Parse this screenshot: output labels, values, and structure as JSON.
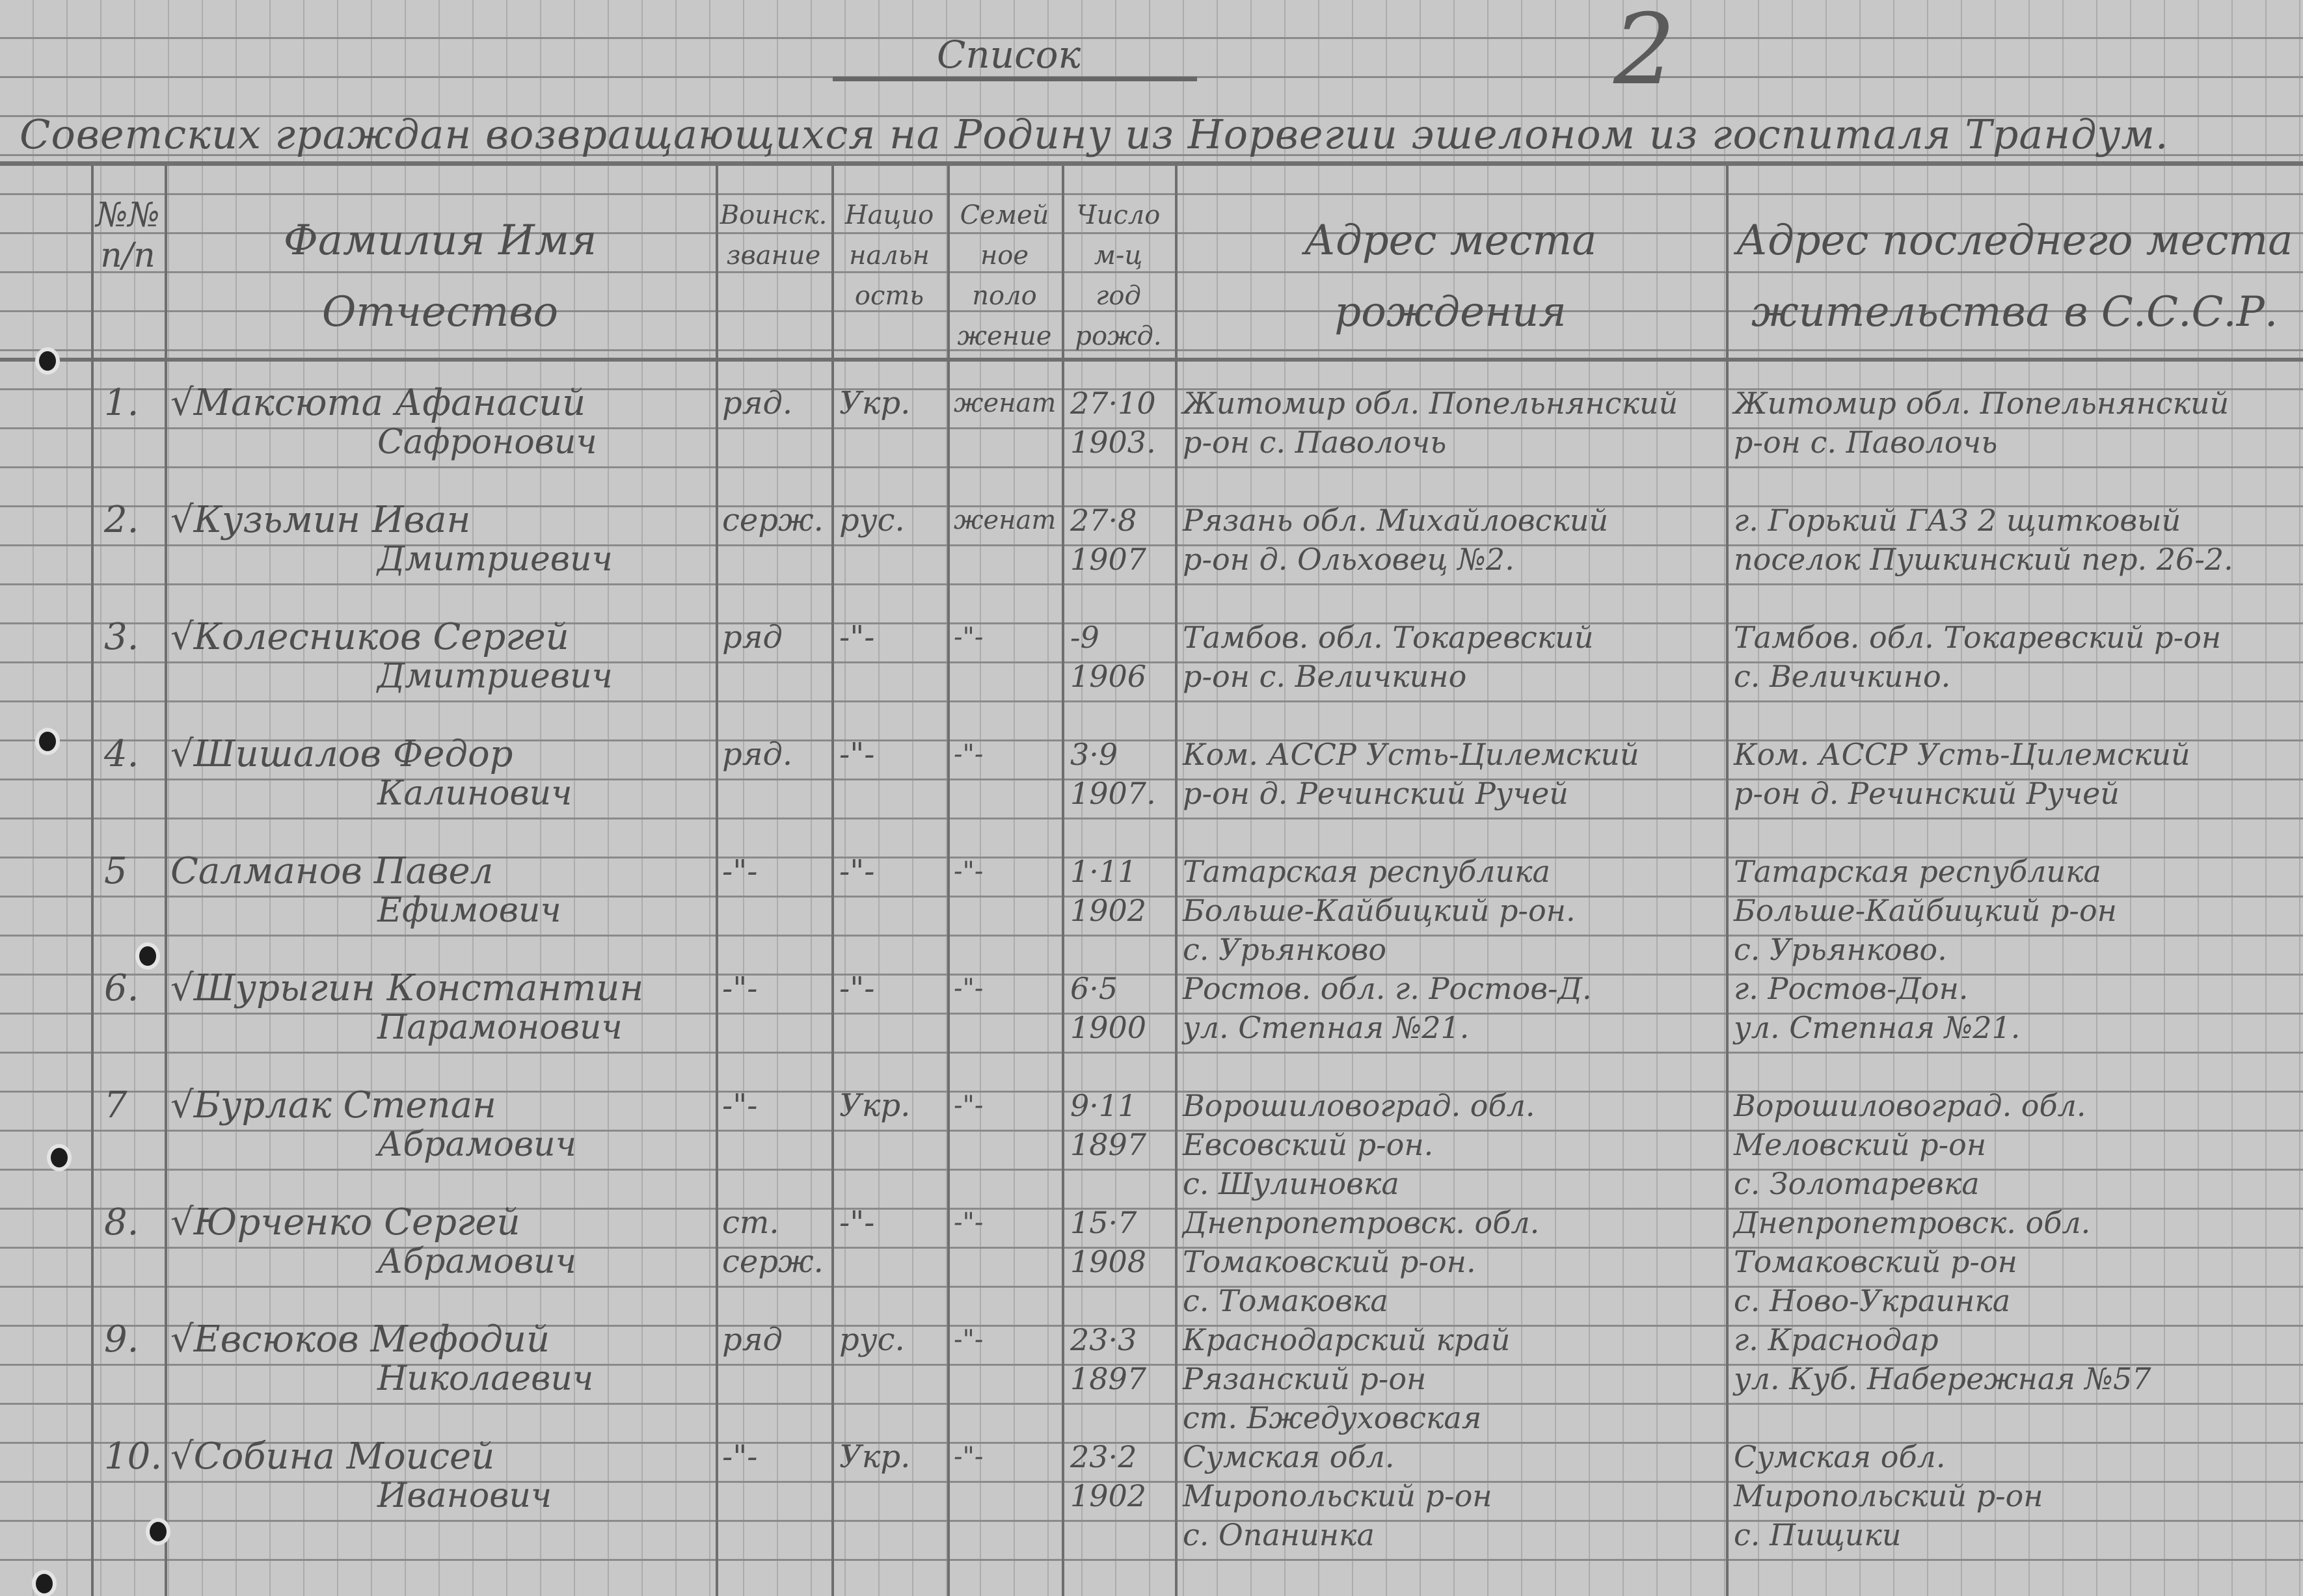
{
  "document": {
    "title": "Список",
    "page_number": "2",
    "subtitle": "Советских граждан возвращающихся на Родину из Норвегии эшелоном из госпиталя Трандум."
  },
  "headers": {
    "number": [
      "№№",
      "п/п"
    ],
    "name": [
      "Фамилия Имя",
      "Отчество"
    ],
    "rank": [
      "Воинск.",
      "звание"
    ],
    "nationality": [
      "Нацио",
      "нальн",
      "ость"
    ],
    "family": [
      "Семей",
      "ное",
      "поло",
      "жение"
    ],
    "birth_date": [
      "Число",
      "м-ц",
      "год",
      "рожд."
    ],
    "birth_address": [
      "Адрес места",
      "рождения"
    ],
    "residence": [
      "Адрес последнего места",
      "жительства в С.С.С.Р."
    ]
  },
  "rows": [
    {
      "no": "1.",
      "name": "√Максюта Афанасий",
      "patronymic": "Сафронович",
      "rank": [
        "ряд."
      ],
      "nationality": "Укр.",
      "family": "женат",
      "date": [
        "27·10",
        "1903."
      ],
      "birth": [
        "Житомир обл. Попельнянский",
        "р-он с. Паволочь"
      ],
      "residence": [
        "Житомир обл. Попельнянский",
        "р-он с. Паволочь"
      ]
    },
    {
      "no": "2.",
      "name": "√Кузьмин Иван",
      "patronymic": "Дмитриевич",
      "rank": [
        "серж."
      ],
      "nationality": "рус.",
      "family": "женат",
      "date": [
        "27·8",
        "1907"
      ],
      "birth": [
        "Рязань обл. Михайловский",
        "р-он д. Ольховец №2."
      ],
      "residence": [
        "г. Горький ГАЗ 2 щитковый",
        "поселок Пушкинский пер. 26-2."
      ]
    },
    {
      "no": "3.",
      "name": "√Колесников Сергей",
      "patronymic": "Дмитриевич",
      "rank": [
        "ряд"
      ],
      "nationality": "-\"-",
      "family": "-\"-",
      "date": [
        "-9",
        "1906"
      ],
      "birth": [
        "Тамбов. обл. Токаревский",
        "р-он с. Величкино"
      ],
      "residence": [
        "Тамбов. обл. Токаревский р-он",
        "с. Величкино."
      ]
    },
    {
      "no": "4.",
      "name": "√Шишалов Федор",
      "patronymic": "Калинович",
      "rank": [
        "ряд."
      ],
      "nationality": "-\"-",
      "family": "-\"-",
      "date": [
        "3·9",
        "1907."
      ],
      "birth": [
        "Ком. АССР Усть-Цилемский",
        "р-он д. Речинский Ручей"
      ],
      "residence": [
        "Ком. АССР Усть-Цилемский",
        "р-он д. Речинский Ручей"
      ]
    },
    {
      "no": "5",
      "name": "Салманов Павел",
      "patronymic": "Ефимович",
      "rank": [
        "-\"-"
      ],
      "nationality": "-\"-",
      "family": "-\"-",
      "date": [
        "1·11",
        "1902"
      ],
      "birth": [
        "Татарская республика",
        "Больше-Кайбицкий р-он.",
        "с. Урьянково"
      ],
      "residence": [
        "Татарская республика",
        "Больше-Кайбицкий р-он",
        "с. Урьянково."
      ]
    },
    {
      "no": "6.",
      "name": "√Шурыгин Константин",
      "patronymic": "Парамонович",
      "rank": [
        "-\"-"
      ],
      "nationality": "-\"-",
      "family": "-\"-",
      "date": [
        "6·5",
        "1900"
      ],
      "birth": [
        "Ростов. обл. г. Ростов-Д.",
        "ул. Степная №21."
      ],
      "residence": [
        "г. Ростов-Дон.",
        "ул. Степная №21."
      ]
    },
    {
      "no": "7",
      "name": "√Бурлак Степан",
      "patronymic": "Абрамович",
      "rank": [
        "-\"-"
      ],
      "nationality": "Укр.",
      "family": "-\"-",
      "date": [
        "9·11",
        "1897"
      ],
      "birth": [
        "Ворошиловоград. обл.",
        "Евсовский р-он.",
        "с. Шулиновка"
      ],
      "residence": [
        "Ворошиловоград. обл.",
        "Меловский р-он",
        "с. Золотаревка"
      ]
    },
    {
      "no": "8.",
      "name": "√Юрченко Сергей",
      "patronymic": "Абрамович",
      "rank": [
        "ст.",
        "серж."
      ],
      "nationality": "-\"-",
      "family": "-\"-",
      "date": [
        "15·7",
        "1908"
      ],
      "birth": [
        "Днепропетровск. обл.",
        "Томаковский р-он.",
        "с. Томаковка"
      ],
      "residence": [
        "Днепропетровск. обл.",
        "Томаковский р-он",
        "с. Ново-Украинка"
      ]
    },
    {
      "no": "9.",
      "name": "√Евсюков Мефодий",
      "patronymic": "Николаевич",
      "rank": [
        "ряд"
      ],
      "nationality": "рус.",
      "family": "-\"-",
      "date": [
        "23·3",
        "1897"
      ],
      "birth": [
        "Краснодарский край",
        "Рязанский р-он",
        "ст. Бжедуховская"
      ],
      "residence": [
        "г. Краснодар",
        "ул. Куб. Набережная №57"
      ]
    },
    {
      "no": "10.",
      "name": "√Собина Моисей",
      "patronymic": "Иванович",
      "rank": [
        "-\"-"
      ],
      "nationality": "Укр.",
      "family": "-\"-",
      "date": [
        "23·2",
        "1902"
      ],
      "birth": [
        "Сумская обл.",
        "Миропольский р-он",
        "с. Опанинка"
      ],
      "residence": [
        "Сумская обл.",
        "Миропольский р-он",
        "с. Пищики"
      ]
    }
  ]
}
